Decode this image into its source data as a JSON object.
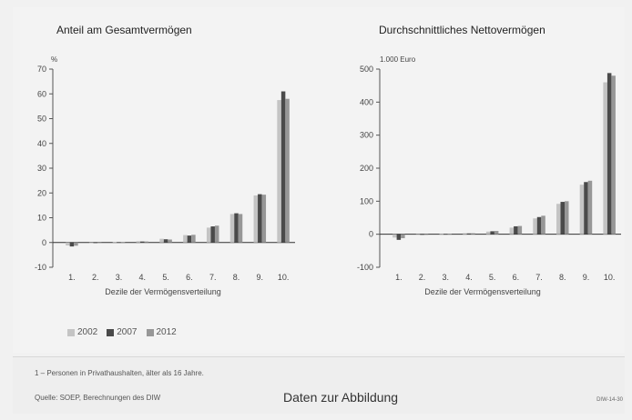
{
  "colors": {
    "s2002": "#c4c4c4",
    "s2007": "#4a4a4a",
    "s2012": "#979797",
    "axis": "#555555",
    "zero": "#333333"
  },
  "legend": [
    {
      "label": "2002"
    },
    {
      "label": "2007"
    },
    {
      "label": "2012"
    }
  ],
  "footer": {
    "footnote": "1 – Personen in Privathaushalten, älter als 16 Jahre.",
    "source": "Quelle: SOEP, Berechnungen des DIW",
    "data_link": "Daten zur Abbildung",
    "code": "DIW-14-30"
  },
  "chart_data": [
    {
      "type": "bar",
      "title": "Anteil am Gesamtvermögen",
      "unit": "%",
      "xlabel": "Dezile der Vermögensverteilung",
      "ylabel": "",
      "ylim": [
        -10,
        70
      ],
      "yticks": [
        -10,
        0,
        10,
        20,
        30,
        40,
        50,
        60,
        70
      ],
      "categories": [
        "1.",
        "2.",
        "3.",
        "4.",
        "5.",
        "6.",
        "7.",
        "8.",
        "9.",
        "10."
      ],
      "series": [
        {
          "name": "2002",
          "values": [
            -1.2,
            0,
            0.1,
            0.5,
            1.5,
            3,
            6,
            11.5,
            19,
            57.5
          ]
        },
        {
          "name": "2007",
          "values": [
            -1.6,
            -0.1,
            0.1,
            0.4,
            1.3,
            2.8,
            6.5,
            11.8,
            19.5,
            61
          ]
        },
        {
          "name": "2012",
          "values": [
            -1.3,
            0,
            0.1,
            0.4,
            1.2,
            3.1,
            6.8,
            11.5,
            19.3,
            58
          ]
        }
      ]
    },
    {
      "type": "bar",
      "title": "Durchschnittliches Nettovermögen",
      "unit": "1.000 Euro",
      "xlabel": "Dezile der Vermögensverteilung",
      "ylabel": "",
      "ylim": [
        -100,
        500
      ],
      "yticks": [
        -100,
        0,
        100,
        200,
        300,
        400,
        500
      ],
      "categories": [
        "1.",
        "2.",
        "3.",
        "4.",
        "5.",
        "6.",
        "7.",
        "8.",
        "9.",
        "10."
      ],
      "series": [
        {
          "name": "2002",
          "values": [
            -10,
            0,
            0.5,
            3,
            8,
            20,
            48,
            92,
            150,
            460
          ]
        },
        {
          "name": "2007",
          "values": [
            -17,
            0,
            0.5,
            2.5,
            9,
            24,
            52,
            98,
            158,
            488
          ]
        },
        {
          "name": "2012",
          "values": [
            -12,
            0,
            0.5,
            3,
            10,
            25,
            56,
            100,
            162,
            480
          ]
        }
      ]
    }
  ]
}
